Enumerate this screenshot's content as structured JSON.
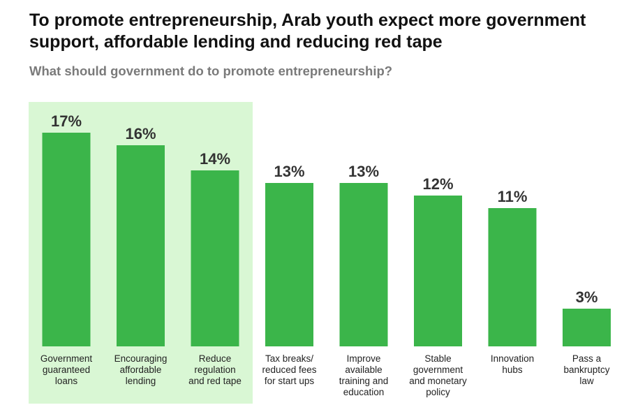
{
  "header": {
    "title": "To promote entrepreneurship, Arab youth expect more government support, affordable lending and reducing red tape",
    "subtitle": "What should government do to promote entrepreneurship?"
  },
  "colors": {
    "bar": "#3bb54a",
    "highlight": "#d9f7d4",
    "value_label": "#333333"
  },
  "chart_data": {
    "type": "bar",
    "categories": [
      "Government\nguaranteed\nloans",
      "Encouraging\naffordable\nlending",
      "Reduce\nregulation\nand red tape",
      "Tax breaks/\nreduced fees\nfor start ups",
      "Improve\navailable\ntraining and\neducation",
      "Stable\ngovernment\nand monetary\npolicy",
      "Innovation\nhubs",
      "Pass a\nbankruptcy\nlaw"
    ],
    "values": [
      17,
      16,
      14,
      13,
      13,
      12,
      11,
      3
    ],
    "value_labels": [
      "17%",
      "16%",
      "14%",
      "13%",
      "13%",
      "12%",
      "11%",
      "3%"
    ],
    "highlighted_categories": [
      0,
      1,
      2
    ],
    "unit": "%",
    "title": "",
    "xlabel": "",
    "ylabel": "",
    "grid": false,
    "legend": "none"
  }
}
